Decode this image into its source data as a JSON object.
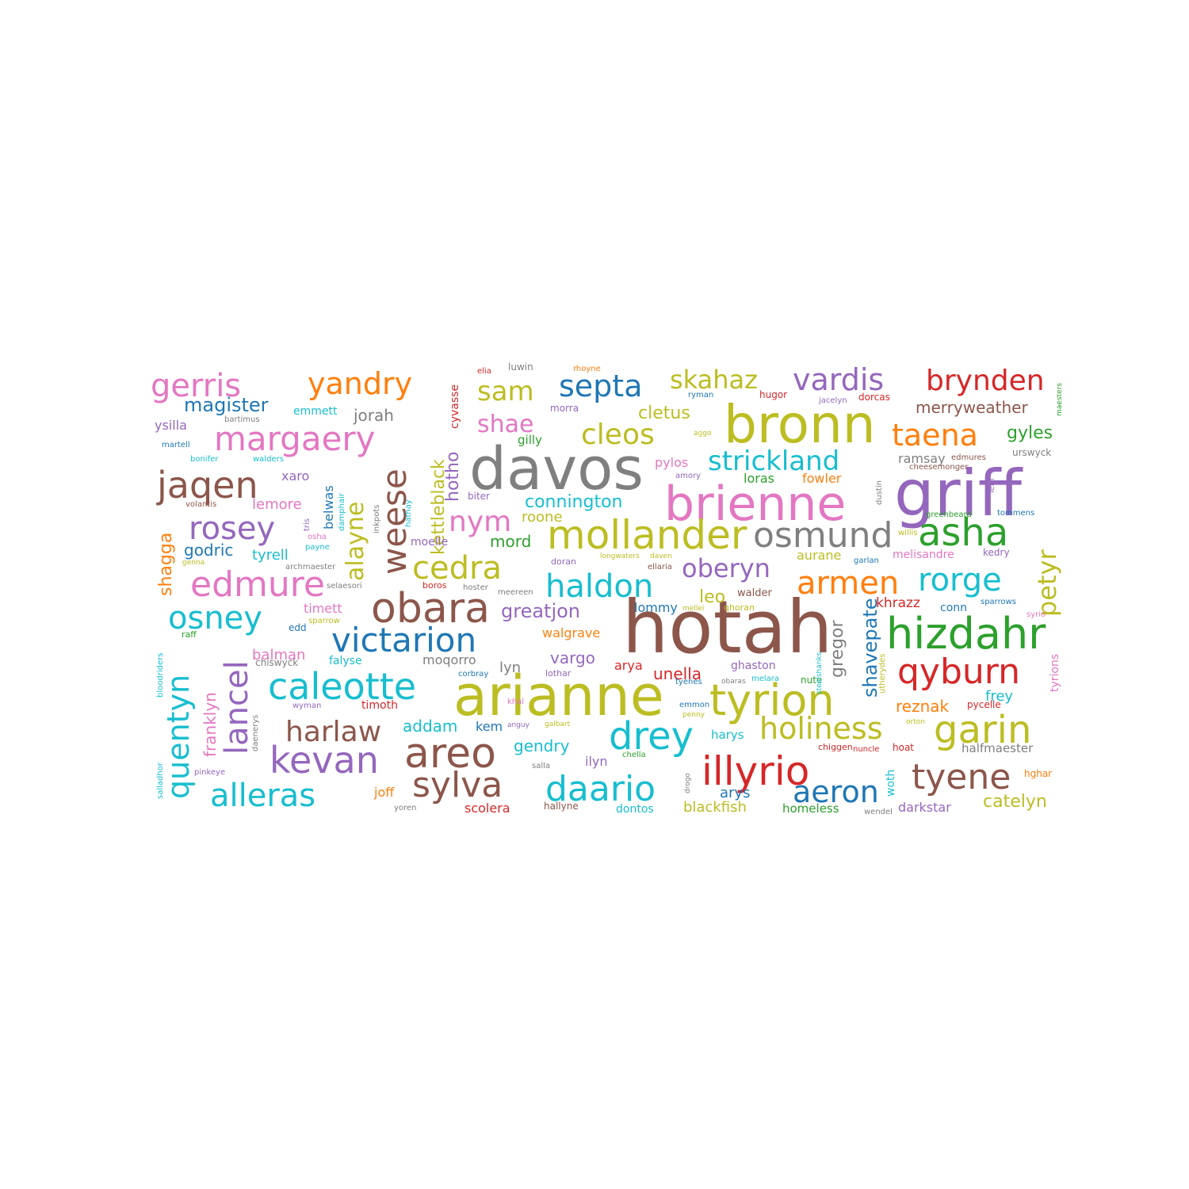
{
  "palette": {
    "blue": "#1f77b4",
    "orange": "#ff7f0e",
    "green": "#2ca02c",
    "red": "#d62728",
    "purple": "#9467bd",
    "brown": "#8c564b",
    "pink": "#e377c2",
    "gray": "#7f7f7f",
    "olive": "#bcbd22",
    "cyan": "#17becf"
  },
  "words": [
    {
      "text": "hotah",
      "color": "brown"
    },
    {
      "text": "arianne",
      "color": "olive"
    },
    {
      "text": "davos",
      "color": "gray"
    },
    {
      "text": "griff",
      "color": "purple"
    },
    {
      "text": "bronn",
      "color": "olive"
    },
    {
      "text": "brienne",
      "color": "pink"
    },
    {
      "text": "tyrion",
      "color": "olive"
    },
    {
      "text": "obara",
      "color": "brown"
    },
    {
      "text": "areo",
      "color": "brown"
    },
    {
      "text": "illyrio",
      "color": "red"
    },
    {
      "text": "mollander",
      "color": "olive"
    },
    {
      "text": "hizdahr",
      "color": "green"
    },
    {
      "text": "victarion",
      "color": "blue"
    },
    {
      "text": "caleotte",
      "color": "cyan"
    },
    {
      "text": "margaery",
      "color": "pink"
    },
    {
      "text": "edmure",
      "color": "pink"
    },
    {
      "text": "jaqen",
      "color": "brown"
    },
    {
      "text": "asha",
      "color": "green"
    },
    {
      "text": "osmund",
      "color": "gray"
    },
    {
      "text": "garin",
      "color": "olive"
    },
    {
      "text": "sylva",
      "color": "brown"
    },
    {
      "text": "daario",
      "color": "cyan"
    },
    {
      "text": "kevan",
      "color": "purple"
    },
    {
      "text": "alleras",
      "color": "cyan"
    },
    {
      "text": "drey",
      "color": "cyan"
    },
    {
      "text": "tyene",
      "color": "brown"
    },
    {
      "text": "qyburn",
      "color": "red"
    },
    {
      "text": "rorge",
      "color": "cyan"
    },
    {
      "text": "quentyn",
      "color": "cyan"
    },
    {
      "text": "lancel",
      "color": "purple"
    },
    {
      "text": "weese",
      "color": "brown"
    },
    {
      "text": "rosey",
      "color": "purple"
    },
    {
      "text": "osney",
      "color": "cyan"
    },
    {
      "text": "cedra",
      "color": "olive"
    },
    {
      "text": "haldon",
      "color": "cyan"
    },
    {
      "text": "armen",
      "color": "orange"
    },
    {
      "text": "holiness",
      "color": "olive"
    },
    {
      "text": "harlaw",
      "color": "brown"
    },
    {
      "text": "aeron",
      "color": "blue"
    },
    {
      "text": "gerris",
      "color": "pink"
    },
    {
      "text": "yandry",
      "color": "orange"
    },
    {
      "text": "vardis",
      "color": "purple"
    },
    {
      "text": "brynden",
      "color": "red"
    },
    {
      "text": "septa",
      "color": "blue"
    },
    {
      "text": "sam",
      "color": "olive"
    },
    {
      "text": "skahaz",
      "color": "olive"
    },
    {
      "text": "cleos",
      "color": "olive"
    },
    {
      "text": "taena",
      "color": "orange"
    },
    {
      "text": "strickland",
      "color": "cyan"
    },
    {
      "text": "nym",
      "color": "pink"
    },
    {
      "text": "oberyn",
      "color": "purple"
    },
    {
      "text": "petyr",
      "color": "olive"
    },
    {
      "text": "alayne",
      "color": "olive"
    },
    {
      "text": "shae",
      "color": "pink"
    },
    {
      "text": "kettleblack",
      "color": "olive"
    },
    {
      "text": "hotho",
      "color": "purple"
    },
    {
      "text": "magister",
      "color": "blue"
    },
    {
      "text": "merryweather",
      "color": "brown"
    },
    {
      "text": "greatjon",
      "color": "purple"
    },
    {
      "text": "connington",
      "color": "cyan"
    },
    {
      "text": "gyles",
      "color": "green"
    },
    {
      "text": "shavepate",
      "color": "blue"
    },
    {
      "text": "gregor",
      "color": "gray"
    },
    {
      "text": "reznak",
      "color": "orange"
    },
    {
      "text": "franklyn",
      "color": "pink"
    },
    {
      "text": "shagga",
      "color": "orange"
    },
    {
      "text": "cletus",
      "color": "olive"
    },
    {
      "text": "addam",
      "color": "cyan"
    },
    {
      "text": "gendry",
      "color": "cyan"
    },
    {
      "text": "vargo",
      "color": "purple"
    },
    {
      "text": "unella",
      "color": "red"
    },
    {
      "text": "jorah",
      "color": "gray"
    },
    {
      "text": "godric",
      "color": "blue"
    },
    {
      "text": "lemore",
      "color": "pink"
    },
    {
      "text": "mord",
      "color": "green"
    },
    {
      "text": "leo",
      "color": "olive"
    },
    {
      "text": "balman",
      "color": "pink"
    },
    {
      "text": "walgrave",
      "color": "orange"
    },
    {
      "text": "frey",
      "color": "cyan"
    },
    {
      "text": "khrazz",
      "color": "red"
    },
    {
      "text": "tyrell",
      "color": "cyan"
    },
    {
      "text": "ramsay",
      "color": "gray"
    },
    {
      "text": "loras",
      "color": "green"
    },
    {
      "text": "fowler",
      "color": "orange"
    },
    {
      "text": "roone",
      "color": "olive"
    },
    {
      "text": "aurane",
      "color": "olive"
    },
    {
      "text": "lommy",
      "color": "blue"
    },
    {
      "text": "moqorro",
      "color": "gray"
    },
    {
      "text": "harys",
      "color": "cyan"
    },
    {
      "text": "arys",
      "color": "blue"
    },
    {
      "text": "arya",
      "color": "red"
    },
    {
      "text": "kem",
      "color": "blue"
    },
    {
      "text": "joff",
      "color": "orange"
    },
    {
      "text": "ilyn",
      "color": "purple"
    },
    {
      "text": "lyn",
      "color": "gray"
    },
    {
      "text": "scolera",
      "color": "red"
    },
    {
      "text": "blackfish",
      "color": "olive"
    },
    {
      "text": "catelyn",
      "color": "olive"
    },
    {
      "text": "darkstar",
      "color": "purple"
    },
    {
      "text": "homeless",
      "color": "green"
    },
    {
      "text": "halfmaester",
      "color": "gray"
    },
    {
      "text": "dontos",
      "color": "cyan"
    },
    {
      "text": "hallyne",
      "color": "brown"
    },
    {
      "text": "woth",
      "color": "cyan"
    },
    {
      "text": "ghaston",
      "color": "purple"
    },
    {
      "text": "emmett",
      "color": "cyan"
    },
    {
      "text": "ysilla",
      "color": "purple"
    },
    {
      "text": "xaro",
      "color": "purple"
    },
    {
      "text": "belwas",
      "color": "blue"
    },
    {
      "text": "cyvasse",
      "color": "red"
    },
    {
      "text": "gilly",
      "color": "green"
    },
    {
      "text": "pylos",
      "color": "pink"
    },
    {
      "text": "moelle",
      "color": "purple"
    },
    {
      "text": "timett",
      "color": "pink"
    },
    {
      "text": "falyse",
      "color": "cyan"
    },
    {
      "text": "timoth",
      "color": "red"
    },
    {
      "text": "melisandre",
      "color": "pink"
    },
    {
      "text": "walder",
      "color": "brown"
    },
    {
      "text": "conn",
      "color": "blue"
    },
    {
      "text": "hoat",
      "color": "red"
    },
    {
      "text": "hghar",
      "color": "orange"
    },
    {
      "text": "pycelle",
      "color": "red"
    },
    {
      "text": "tyrions",
      "color": "pink"
    },
    {
      "text": "nute",
      "color": "green"
    },
    {
      "text": "urswyck",
      "color": "gray"
    },
    {
      "text": "hugor",
      "color": "red"
    },
    {
      "text": "dorcas",
      "color": "red"
    },
    {
      "text": "luwin",
      "color": "gray"
    },
    {
      "text": "rhoyne",
      "color": "orange"
    },
    {
      "text": "elia",
      "color": "red"
    },
    {
      "text": "morra",
      "color": "purple"
    },
    {
      "text": "ryman",
      "color": "blue"
    },
    {
      "text": "jacelyn",
      "color": "purple"
    },
    {
      "text": "bartimus",
      "color": "gray"
    },
    {
      "text": "martell",
      "color": "blue"
    },
    {
      "text": "bonifer",
      "color": "cyan"
    },
    {
      "text": "walders",
      "color": "cyan"
    },
    {
      "text": "volantis",
      "color": "brown"
    },
    {
      "text": "damphair",
      "color": "cyan"
    },
    {
      "text": "hathay",
      "color": "cyan"
    },
    {
      "text": "tris",
      "color": "purple"
    },
    {
      "text": "osha",
      "color": "pink"
    },
    {
      "text": "payne",
      "color": "cyan"
    },
    {
      "text": "genna",
      "color": "olive"
    },
    {
      "text": "archmaester",
      "color": "gray"
    },
    {
      "text": "inkpots",
      "color": "gray"
    },
    {
      "text": "selaesori",
      "color": "gray"
    },
    {
      "text": "boros",
      "color": "red"
    },
    {
      "text": "hoster",
      "color": "gray"
    },
    {
      "text": "meereen",
      "color": "gray"
    },
    {
      "text": "sparrow",
      "color": "olive"
    },
    {
      "text": "raff",
      "color": "green"
    },
    {
      "text": "edd",
      "color": "blue"
    },
    {
      "text": "chiswyck",
      "color": "gray"
    },
    {
      "text": "corbray",
      "color": "blue"
    },
    {
      "text": "lothar",
      "color": "purple"
    },
    {
      "text": "bloodriders",
      "color": "cyan"
    },
    {
      "text": "daenerys",
      "color": "gray"
    },
    {
      "text": "wyman",
      "color": "purple"
    },
    {
      "text": "khal",
      "color": "pink"
    },
    {
      "text": "anguy",
      "color": "purple"
    },
    {
      "text": "galbart",
      "color": "olive"
    },
    {
      "text": "salladhor",
      "color": "cyan"
    },
    {
      "text": "pinkeye",
      "color": "purple"
    },
    {
      "text": "salla",
      "color": "gray"
    },
    {
      "text": "chella",
      "color": "green"
    },
    {
      "text": "drogo",
      "color": "gray"
    },
    {
      "text": "yoren",
      "color": "gray"
    },
    {
      "text": "emmon",
      "color": "blue"
    },
    {
      "text": "penny",
      "color": "olive"
    },
    {
      "text": "tyenes",
      "color": "blue"
    },
    {
      "text": "obaras",
      "color": "gray"
    },
    {
      "text": "melara",
      "color": "cyan"
    },
    {
      "text": "mellei",
      "color": "olive"
    },
    {
      "text": "qhoran",
      "color": "olive"
    },
    {
      "text": "steelshanks",
      "color": "cyan"
    },
    {
      "text": "utherydes",
      "color": "olive"
    },
    {
      "text": "orton",
      "color": "olive"
    },
    {
      "text": "chiggen",
      "color": "red"
    },
    {
      "text": "nuncle",
      "color": "red"
    },
    {
      "text": "wendel",
      "color": "gray"
    },
    {
      "text": "sparrows",
      "color": "blue"
    },
    {
      "text": "syrio",
      "color": "pink"
    },
    {
      "text": "kedry",
      "color": "purple"
    },
    {
      "text": "garlan",
      "color": "blue"
    },
    {
      "text": "willis",
      "color": "olive"
    },
    {
      "text": "greenbeard",
      "color": "green"
    },
    {
      "text": "tommens",
      "color": "blue"
    },
    {
      "text": "lem",
      "color": "purple"
    },
    {
      "text": "dustin",
      "color": "gray"
    },
    {
      "text": "cheesemonger",
      "color": "brown"
    },
    {
      "text": "edmures",
      "color": "brown"
    },
    {
      "text": "aggo",
      "color": "olive"
    },
    {
      "text": "amory",
      "color": "purple"
    },
    {
      "text": "biter",
      "color": "purple"
    },
    {
      "text": "doran",
      "color": "purple"
    },
    {
      "text": "ellaria",
      "color": "brown"
    },
    {
      "text": "longwaters",
      "color": "olive"
    },
    {
      "text": "daven",
      "color": "olive"
    },
    {
      "text": "maesters",
      "color": "green"
    }
  ]
}
